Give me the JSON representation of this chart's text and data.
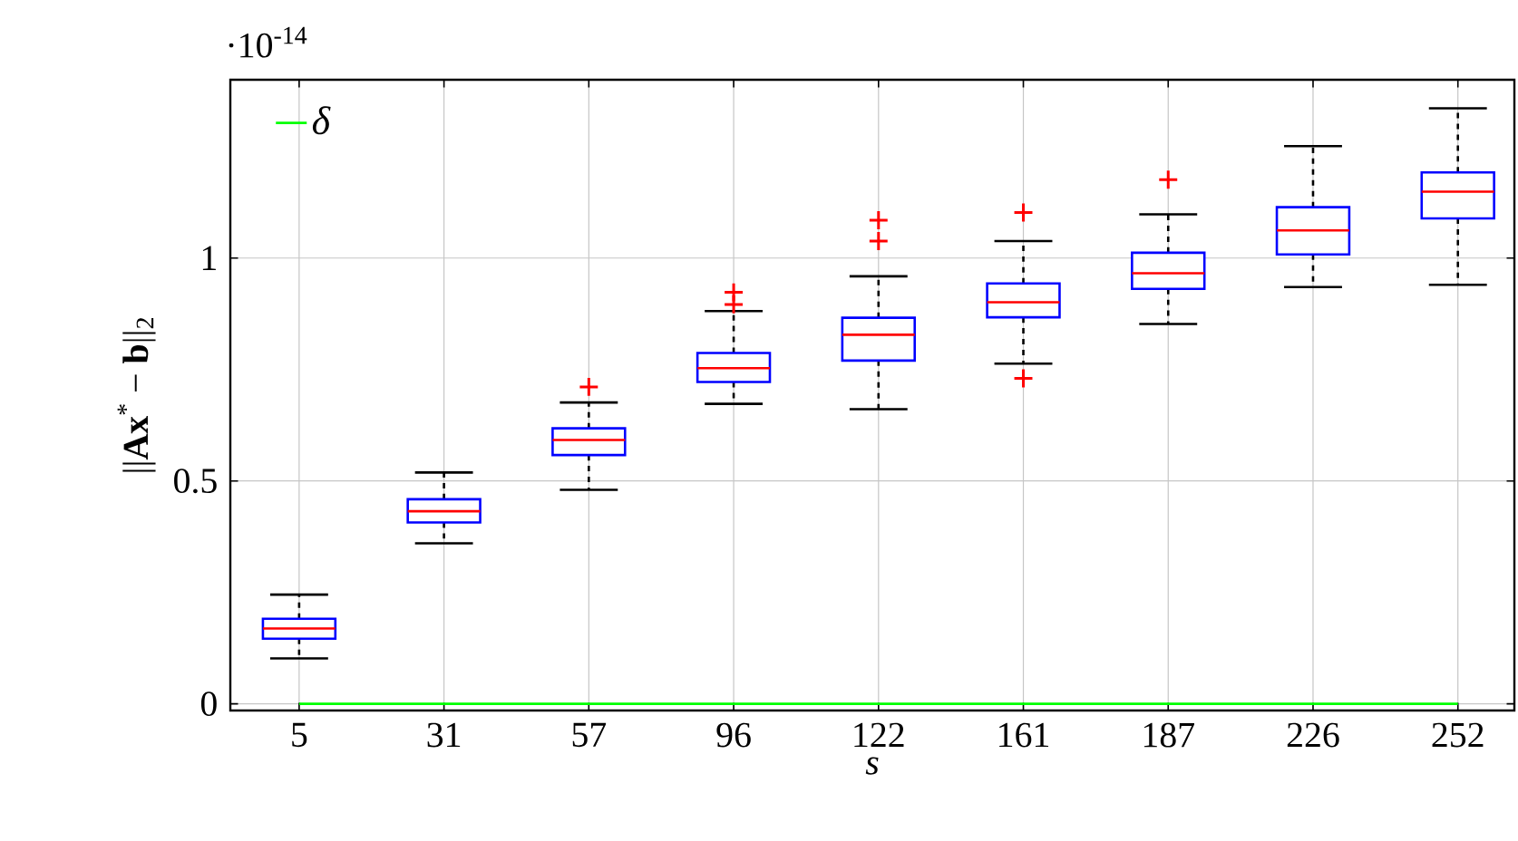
{
  "chart_data": {
    "type": "box",
    "ylabel": "||**Ax**$^{*}$ − **b**||$_{2}$",
    "xlabel": "s",
    "annotations": [
      "·10$^{-14}$"
    ],
    "categories": [
      "5",
      "31",
      "57",
      "96",
      "122",
      "161",
      "187",
      "226",
      "252"
    ],
    "color": "#0000ff",
    "boxes": [
      {
        "low": 0.102,
        "q1": 0.146,
        "median": 0.169,
        "q3": 0.191,
        "high": 0.245
      },
      {
        "low": 0.36,
        "q1": 0.407,
        "median": 0.432,
        "q3": 0.459,
        "high": 0.519
      },
      {
        "low": 0.48,
        "q1": 0.558,
        "median": 0.592,
        "q3": 0.618,
        "high": 0.676,
        "outliers": [
          0.711
        ]
      },
      {
        "low": 0.673,
        "q1": 0.722,
        "median": 0.753,
        "q3": 0.787,
        "high": 0.881,
        "outliers": [
          0.896,
          0.923
        ]
      },
      {
        "low": 0.661,
        "q1": 0.77,
        "median": 0.828,
        "q3": 0.866,
        "high": 0.959,
        "outliers": [
          1.038,
          1.085
        ]
      },
      {
        "low": 0.763,
        "q1": 0.867,
        "median": 0.901,
        "q3": 0.943,
        "high": 1.038,
        "outliers": [
          0.73,
          1.102
        ]
      },
      {
        "low": 0.852,
        "q1": 0.931,
        "median": 0.966,
        "q3": 1.012,
        "high": 1.098,
        "outliers": [
          1.176
        ]
      },
      {
        "low": 0.935,
        "q1": 1.008,
        "median": 1.062,
        "q3": 1.114,
        "high": 1.251
      },
      {
        "low": 0.94,
        "q1": 1.089,
        "median": 1.149,
        "q3": 1.192,
        "high": 1.336
      }
    ],
    "series": [
      {
        "name": "δ",
        "type": "line",
        "color": "#00ff00",
        "values": [
          0,
          0,
          0,
          0,
          0,
          0,
          0,
          0,
          0
        ]
      }
    ],
    "ylim": [
      -0.015,
      1.4
    ],
    "yticks": [
      0,
      0.5,
      1
    ],
    "grid": true,
    "legend": "top left"
  }
}
